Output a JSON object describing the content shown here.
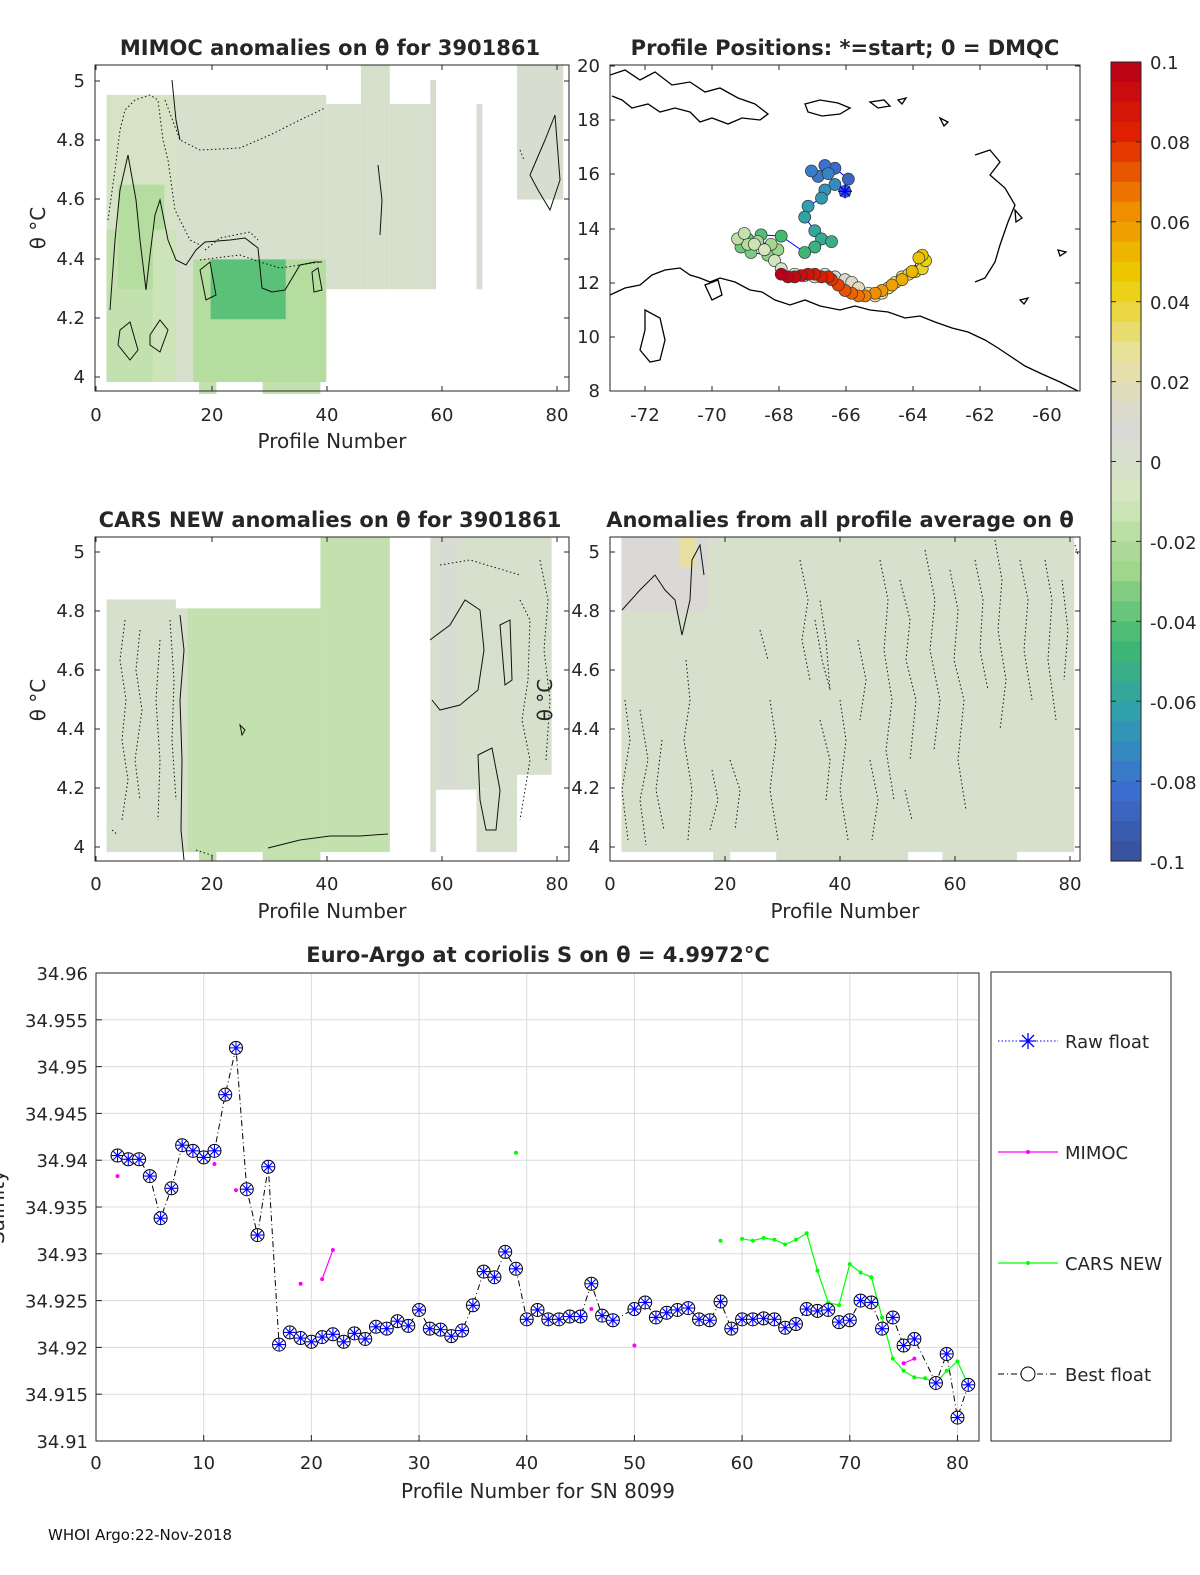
{
  "footer": "WHOI Argo:22-Nov-2018",
  "colors": {
    "raw": "#0000ff",
    "mimoc": "#ff00ff",
    "cars": "#00ff00",
    "best": "#000000",
    "anom_neutral": "#d9d9d9",
    "anom_pos": "#e6e0a0",
    "anom_neg": "#c8e6a8",
    "anom_neg_strong": "#66bb77"
  },
  "colorbar": {
    "ticks": [
      "0.1",
      "0.08",
      "0.06",
      "0.04",
      "0.02",
      "0",
      "-0.02",
      "-0.04",
      "-0.06",
      "-0.08",
      "-0.1"
    ],
    "range": [
      -0.1,
      0.1
    ],
    "stops": [
      "#3a4f9a",
      "#3b6fd0",
      "#2f9fb0",
      "#3fb870",
      "#9fd68a",
      "#d5e7bf",
      "#d9d9d9",
      "#e8e19a",
      "#ebcf00",
      "#f08a00",
      "#e02000",
      "#b8001a"
    ]
  },
  "panels": {
    "mimoc": {
      "title": "MIMOC anomalies on θ  for 3901861",
      "xlabel": "Profile Number",
      "ylabel": "θ °C",
      "xticks": [
        "0",
        "20",
        "40",
        "60",
        "80"
      ],
      "yticks": [
        "4",
        "4.2",
        "4.4",
        "4.6",
        "4.8",
        "5"
      ]
    },
    "map": {
      "title": "Profile Positions: *=start; 0 = DMQC",
      "xticks": [
        "-72",
        "-70",
        "-68",
        "-66",
        "-64",
        "-62",
        "-60"
      ],
      "yticks": [
        "8",
        "10",
        "12",
        "14",
        "16",
        "18",
        "20"
      ]
    },
    "cars": {
      "title": "CARS NEW anomalies on θ for 3901861",
      "xlabel": "Profile Number",
      "ylabel": "θ °C",
      "xticks": [
        "0",
        "20",
        "40",
        "60",
        "80"
      ],
      "yticks": [
        "4",
        "4.2",
        "4.4",
        "4.6",
        "4.8",
        "5"
      ]
    },
    "avg": {
      "title": "Anomalies from all profile average on θ",
      "xlabel": "Profile Number",
      "ylabel": "θ °C",
      "xticks": [
        "0",
        "20",
        "40",
        "60",
        "80"
      ],
      "yticks": [
        "4",
        "4.2",
        "4.4",
        "4.6",
        "4.8",
        "5"
      ]
    }
  },
  "chart_data": [
    {
      "type": "heatmap",
      "name": "MIMOC anomalies on theta",
      "title": "MIMOC anomalies on θ  for 3901861",
      "xlabel": "Profile Number",
      "ylabel": "θ °C",
      "xlim": [
        0,
        82
      ],
      "ylim": [
        3.96,
        5.05
      ],
      "blocks": [
        {
          "x": [
            2,
            14
          ],
          "y": [
            3.99,
            4.95
          ],
          "anomaly": -0.005
        },
        {
          "x": [
            2,
            10
          ],
          "y": [
            3.99,
            4.5
          ],
          "anomaly": -0.015
        },
        {
          "x": [
            4,
            12
          ],
          "y": [
            4.3,
            4.65
          ],
          "anomaly": -0.02
        },
        {
          "x": [
            10,
            17
          ],
          "y": [
            3.99,
            4.5
          ],
          "anomaly": -0.012
        },
        {
          "x": [
            14,
            40
          ],
          "y": [
            3.99,
            4.95
          ],
          "anomaly": 0.0
        },
        {
          "x": [
            17,
            40
          ],
          "y": [
            3.99,
            4.4
          ],
          "anomaly": -0.02
        },
        {
          "x": [
            20,
            33
          ],
          "y": [
            4.2,
            4.4
          ],
          "anomaly": -0.04
        },
        {
          "x": [
            18,
            21
          ],
          "y": [
            3.95,
            3.99
          ],
          "anomaly": -0.015
        },
        {
          "x": [
            29,
            39
          ],
          "y": [
            3.95,
            3.99
          ],
          "anomaly": -0.015
        },
        {
          "x": [
            40,
            46
          ],
          "y": [
            4.3,
            4.92
          ],
          "anomaly": 0.0
        },
        {
          "x": [
            46,
            51
          ],
          "y": [
            4.3,
            5.05
          ],
          "anomaly": 0.0
        },
        {
          "x": [
            51,
            58
          ],
          "y": [
            4.3,
            4.92
          ],
          "anomaly": 0.0
        },
        {
          "x": [
            58,
            59
          ],
          "y": [
            4.3,
            5.0
          ],
          "anomaly": 0.012
        },
        {
          "x": [
            66,
            67
          ],
          "y": [
            4.3,
            4.92
          ],
          "anomaly": 0.005
        },
        {
          "x": [
            73,
            81
          ],
          "y": [
            4.6,
            5.05
          ],
          "anomaly": 0.002
        }
      ]
    },
    {
      "type": "scatter",
      "name": "Profile Positions",
      "title": "Profile Positions: *=start; 0 = DMQC",
      "xlim": [
        -73,
        -59
      ],
      "ylim": [
        8,
        20
      ],
      "start": {
        "lon": -66.0,
        "lat": 15.35
      },
      "lon": [
        -66.0,
        -65.9,
        -66.3,
        -66.6,
        -66.8,
        -67.0,
        -66.5,
        -66.3,
        -66.6,
        -66.7,
        -67.1,
        -67.2,
        -66.9,
        -66.7,
        -66.4,
        -66.9,
        -67.2,
        -67.9,
        -68.5,
        -68.9,
        -69.1,
        -68.8,
        -68.3,
        -68.0,
        -68.2,
        -68.6,
        -68.9,
        -69.2,
        -69.0,
        -68.7,
        -68.4,
        -68.1,
        -67.9,
        -67.5,
        -67.2,
        -66.9,
        -66.6,
        -66.3,
        -66.0,
        -65.8,
        -65.6,
        -65.3,
        -65.1,
        -64.9,
        -64.7,
        -64.5,
        -64.3,
        -64.1,
        -63.9,
        -63.7,
        -63.6,
        -63.7,
        -63.8,
        -64.0,
        -64.3,
        -64.6,
        -64.9,
        -65.1,
        -65.4,
        -65.6,
        -65.8,
        -66.0,
        -66.2,
        -66.4,
        -66.5,
        -66.7,
        -66.9,
        -67.1,
        -67.3,
        -67.5,
        -67.7,
        -67.9
      ],
      "lat": [
        15.35,
        15.8,
        16.2,
        16.3,
        15.9,
        16.1,
        16.0,
        15.6,
        15.4,
        15.1,
        14.8,
        14.4,
        13.9,
        13.6,
        13.5,
        13.3,
        13.1,
        13.7,
        13.75,
        13.6,
        13.3,
        13.1,
        13.0,
        13.2,
        13.4,
        13.5,
        13.4,
        13.6,
        13.8,
        13.4,
        13.2,
        12.8,
        12.5,
        12.3,
        12.25,
        12.2,
        12.3,
        12.2,
        12.1,
        12.0,
        11.8,
        11.6,
        11.5,
        11.6,
        11.8,
        12.0,
        12.2,
        12.3,
        12.4,
        12.5,
        12.8,
        13.0,
        12.9,
        12.4,
        12.1,
        11.9,
        11.7,
        11.6,
        11.5,
        11.5,
        11.6,
        11.7,
        11.9,
        12.1,
        12.2,
        12.2,
        12.3,
        12.3,
        12.25,
        12.2,
        12.2,
        12.3
      ]
    },
    {
      "type": "heatmap",
      "name": "CARS NEW anomalies on theta",
      "title": "CARS NEW anomalies on θ for 3901861",
      "xlabel": "Profile Number",
      "ylabel": "θ °C",
      "xlim": [
        0,
        82
      ],
      "ylim": [
        3.96,
        5.05
      ],
      "blocks": [
        {
          "x": [
            2,
            14
          ],
          "y": [
            3.99,
            4.84
          ],
          "anomaly": 0.0
        },
        {
          "x": [
            14,
            16
          ],
          "y": [
            3.99,
            4.81
          ],
          "anomaly": 0.0
        },
        {
          "x": [
            16,
            39
          ],
          "y": [
            3.99,
            4.81
          ],
          "anomaly": -0.015
        },
        {
          "x": [
            39,
            51
          ],
          "y": [
            3.99,
            5.05
          ],
          "anomaly": -0.015
        },
        {
          "x": [
            18,
            21
          ],
          "y": [
            3.96,
            3.99
          ],
          "anomaly": -0.015
        },
        {
          "x": [
            29,
            39
          ],
          "y": [
            3.96,
            3.99
          ],
          "anomaly": -0.015
        },
        {
          "x": [
            58,
            59
          ],
          "y": [
            3.99,
            5.05
          ],
          "anomaly": 0.0
        },
        {
          "x": [
            59,
            73
          ],
          "y": [
            4.2,
            5.05
          ],
          "anomaly": 0.0
        },
        {
          "x": [
            59,
            63
          ],
          "y": [
            4.2,
            5.05
          ],
          "anomaly": 0.005
        },
        {
          "x": [
            66,
            73
          ],
          "y": [
            3.99,
            4.2
          ],
          "anomaly": 0.0
        },
        {
          "x": [
            73,
            79
          ],
          "y": [
            4.25,
            5.05
          ],
          "anomaly": 0.0
        }
      ]
    },
    {
      "type": "heatmap",
      "name": "Anomalies from all profile average",
      "title": "Anomalies from all profile average on θ",
      "xlabel": "Profile Number",
      "ylabel": "θ °C",
      "xlim": [
        0,
        82
      ],
      "ylim": [
        3.96,
        5.05
      ],
      "blocks": [
        {
          "x": [
            2,
            81
          ],
          "y": [
            3.99,
            5.05
          ],
          "anomaly": 0.0
        },
        {
          "x": [
            2,
            17
          ],
          "y": [
            4.8,
            5.05
          ],
          "anomaly": 0.01
        },
        {
          "x": [
            12,
            15
          ],
          "y": [
            4.95,
            5.05
          ],
          "anomaly": 0.025
        },
        {
          "x": [
            18,
            21
          ],
          "y": [
            3.96,
            3.99
          ],
          "anomaly": 0.0
        },
        {
          "x": [
            29,
            52
          ],
          "y": [
            3.96,
            3.99
          ],
          "anomaly": 0.0
        },
        {
          "x": [
            58,
            71
          ],
          "y": [
            3.96,
            3.99
          ],
          "anomaly": 0.0
        },
        {
          "x": [
            74,
            81
          ],
          "y": [
            3.99,
            4.15
          ],
          "anomaly": null
        }
      ]
    },
    {
      "type": "line",
      "name": "Salinity on theta level",
      "title": "Euro-Argo at coriolis S on θ = 4.9972°C",
      "xlabel": "Profile Number for SN 8099",
      "ylabel": "Salinity",
      "xlim": [
        0,
        82
      ],
      "ylim": [
        34.91,
        34.96
      ],
      "xticks": [
        "0",
        "10",
        "20",
        "30",
        "40",
        "50",
        "60",
        "70",
        "80"
      ],
      "yticks": [
        "34.91",
        "34.915",
        "34.92",
        "34.925",
        "34.93",
        "34.935",
        "34.94",
        "34.945",
        "34.95",
        "34.955",
        "34.96"
      ],
      "legend": {
        "placement": "right",
        "entries": [
          "Raw float",
          "MIMOC",
          "CARS NEW",
          "Best float"
        ]
      },
      "series": [
        {
          "name": "Best float",
          "x": [
            2,
            3,
            4,
            5,
            6,
            7,
            8,
            9,
            10,
            11,
            12,
            13,
            14,
            15,
            16,
            17,
            18,
            19,
            20,
            21,
            22,
            23,
            24,
            25,
            26,
            27,
            28,
            29,
            30,
            31,
            32,
            33,
            34,
            35,
            36,
            37,
            38,
            39,
            40,
            41,
            42,
            43,
            44,
            45,
            46,
            47,
            48,
            49,
            50,
            51,
            52,
            53,
            54,
            55,
            56,
            57,
            58,
            59,
            60,
            61,
            62,
            63,
            64,
            65,
            66,
            67,
            68,
            69,
            70,
            71,
            72,
            73,
            74,
            75,
            76,
            77,
            78,
            79,
            80,
            81
          ],
          "values": [
            34.9405,
            34.9401,
            34.9401,
            34.9383,
            34.9338,
            34.937,
            34.9416,
            34.941,
            34.9403,
            34.941,
            34.947,
            34.952,
            34.9369,
            34.932,
            34.9393,
            34.9203,
            34.9216,
            34.921,
            34.9206,
            34.9211,
            34.9214,
            34.9206,
            34.9215,
            34.9209,
            34.9222,
            34.922,
            34.9228,
            34.9223,
            34.924,
            34.922,
            34.9219,
            34.9212,
            34.9218,
            34.9245,
            34.9281,
            34.9275,
            34.9302,
            34.9284,
            34.923,
            34.924,
            34.923,
            34.923,
            34.9233,
            34.9233,
            34.9268,
            34.9234,
            34.9229,
            null,
            34.9241,
            34.9248,
            34.9232,
            34.9237,
            34.924,
            34.9242,
            34.923,
            34.9229,
            34.9249,
            34.922,
            34.923,
            34.923,
            34.9231,
            34.923,
            34.9221,
            34.9225,
            34.9241,
            34.9239,
            34.924,
            34.9227,
            34.9229,
            34.925,
            34.9248,
            34.922,
            34.9232,
            34.9202,
            34.9209,
            null,
            34.9162,
            34.9193,
            34.9125,
            34.916
          ]
        },
        {
          "name": "MIMOC",
          "x": [
            2,
            11,
            13,
            19,
            21,
            22,
            46,
            50,
            75,
            76
          ],
          "values": [
            34.9383,
            34.9396,
            34.9368,
            34.9268,
            34.9273,
            34.9304,
            34.9241,
            34.9202,
            34.9183,
            34.9188
          ]
        },
        {
          "name": "CARS NEW",
          "x": [
            39,
            58,
            60,
            61,
            62,
            63,
            64,
            65,
            66,
            67,
            68,
            69,
            70,
            71,
            72,
            73,
            74,
            75,
            76,
            77,
            78,
            79,
            80,
            81
          ],
          "values": [
            34.9408,
            34.9314,
            34.9316,
            34.9314,
            34.9317,
            34.9315,
            34.931,
            34.9315,
            34.9322,
            34.9282,
            34.9248,
            34.9245,
            34.9289,
            34.928,
            34.9275,
            34.9232,
            34.9188,
            34.9175,
            34.9168,
            34.9167,
            34.9162,
            34.9175,
            34.9185,
            34.916
          ]
        }
      ]
    }
  ]
}
